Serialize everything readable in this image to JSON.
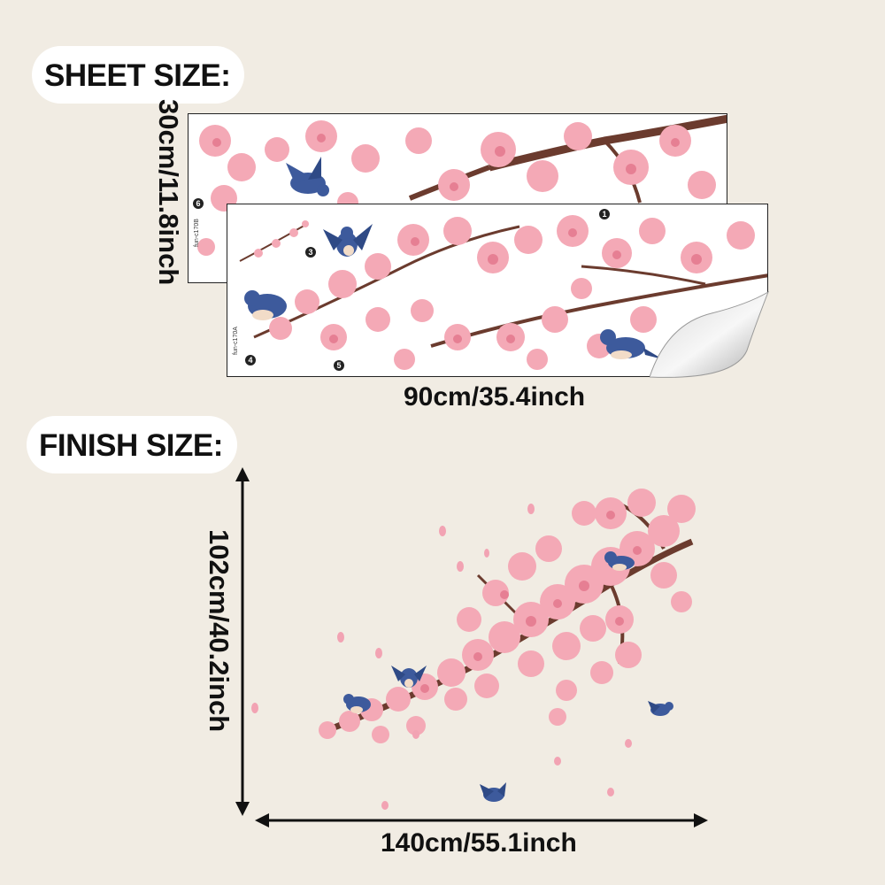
{
  "sheet_section": {
    "label": "SHEET SIZE:",
    "height_label": "30cm/11.8inch",
    "width_label": "90cm/35.4inch",
    "back_sheet": {
      "code": "fun-c170B",
      "markers": [
        "6"
      ]
    },
    "front_sheet": {
      "code": "fun-c170A",
      "markers": [
        "1",
        "3",
        "4",
        "5"
      ]
    }
  },
  "finish_section": {
    "label": "FINISH SIZE:",
    "height_label": "102cm/40.2inch",
    "width_label": "140cm/55.1inch"
  },
  "colors": {
    "background": "#f1ece3",
    "blossom": "#f4a9b6",
    "blossom_dark": "#e67f93",
    "branch": "#6b3b2e",
    "bird": "#3d5a9c"
  }
}
